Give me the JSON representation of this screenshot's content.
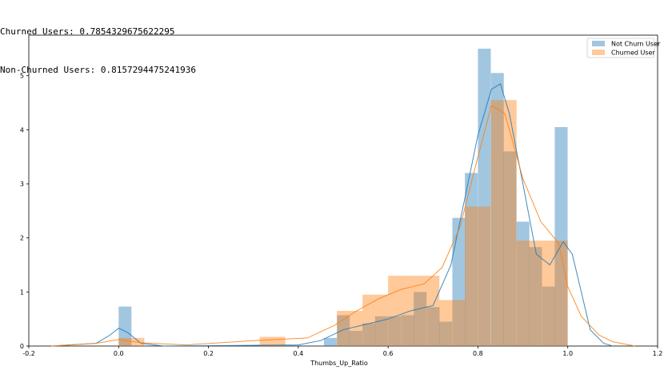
{
  "output": {
    "lines": [
      "Churned Users: 0.7854329675622295",
      "Non-Churned Users: 0.8157294475241936"
    ]
  },
  "colors": {
    "not_churn": "#1f77b4",
    "churned": "#ff7f0e"
  },
  "chart_data": {
    "type": "bar",
    "xlabel": "Thumbs_Up_Ratio",
    "ylabel": "",
    "title": "",
    "xlim": [
      -0.2,
      1.2
    ],
    "ylim": [
      0,
      5.75
    ],
    "xticks": [
      "-0.2",
      "0.0",
      "0.2",
      "0.4",
      "0.6",
      "0.8",
      "1.0",
      "1.2"
    ],
    "yticks": [
      "0",
      "1",
      "2",
      "3",
      "4",
      "5"
    ],
    "legend": {
      "position": "top-right"
    },
    "series": [
      {
        "name": "Not Churn User",
        "kind": "histogram_kde",
        "bin_width": 0.0286,
        "bins": [
          [
            0.0,
            0.73
          ],
          [
            0.457,
            0.15
          ],
          [
            0.486,
            0.57
          ],
          [
            0.514,
            0.28
          ],
          [
            0.543,
            0.42
          ],
          [
            0.571,
            0.55
          ],
          [
            0.6,
            0.55
          ],
          [
            0.629,
            0.57
          ],
          [
            0.657,
            1.0
          ],
          [
            0.686,
            0.72
          ],
          [
            0.714,
            0.45
          ],
          [
            0.743,
            2.37
          ],
          [
            0.771,
            3.2
          ],
          [
            0.8,
            5.5
          ],
          [
            0.829,
            5.05
          ],
          [
            0.857,
            3.6
          ],
          [
            0.886,
            2.3
          ],
          [
            0.914,
            1.83
          ],
          [
            0.943,
            1.1
          ],
          [
            0.971,
            4.05
          ]
        ],
        "kde": [
          [
            -0.15,
            0.0
          ],
          [
            -0.05,
            0.05
          ],
          [
            -0.02,
            0.2
          ],
          [
            0.0,
            0.33
          ],
          [
            0.02,
            0.25
          ],
          [
            0.05,
            0.05
          ],
          [
            0.1,
            0.0
          ],
          [
            0.4,
            0.02
          ],
          [
            0.45,
            0.1
          ],
          [
            0.5,
            0.3
          ],
          [
            0.55,
            0.4
          ],
          [
            0.6,
            0.5
          ],
          [
            0.65,
            0.65
          ],
          [
            0.7,
            0.75
          ],
          [
            0.74,
            1.5
          ],
          [
            0.77,
            2.7
          ],
          [
            0.8,
            3.9
          ],
          [
            0.83,
            4.75
          ],
          [
            0.85,
            4.85
          ],
          [
            0.87,
            4.3
          ],
          [
            0.9,
            3.0
          ],
          [
            0.93,
            1.7
          ],
          [
            0.96,
            1.5
          ],
          [
            0.99,
            1.93
          ],
          [
            1.01,
            1.7
          ],
          [
            1.03,
            1.0
          ],
          [
            1.05,
            0.3
          ],
          [
            1.08,
            0.05
          ],
          [
            1.1,
            0.0
          ]
        ]
      },
      {
        "name": "Churned User",
        "kind": "histogram_kde",
        "bin_width": 0.0571,
        "bins": [
          [
            0.0,
            0.15
          ],
          [
            0.314,
            0.17
          ],
          [
            0.486,
            0.65
          ],
          [
            0.543,
            0.95
          ],
          [
            0.6,
            1.3
          ],
          [
            0.657,
            1.3
          ],
          [
            0.714,
            0.85
          ],
          [
            0.771,
            2.58
          ],
          [
            0.829,
            4.55
          ],
          [
            0.886,
            1.95
          ],
          [
            0.943,
            1.95
          ]
        ],
        "kde": [
          [
            -0.15,
            0.0
          ],
          [
            -0.05,
            0.05
          ],
          [
            0.0,
            0.12
          ],
          [
            0.05,
            0.06
          ],
          [
            0.15,
            0.02
          ],
          [
            0.3,
            0.1
          ],
          [
            0.35,
            0.12
          ],
          [
            0.42,
            0.15
          ],
          [
            0.48,
            0.38
          ],
          [
            0.53,
            0.65
          ],
          [
            0.58,
            0.88
          ],
          [
            0.63,
            1.05
          ],
          [
            0.68,
            1.15
          ],
          [
            0.72,
            1.45
          ],
          [
            0.76,
            2.2
          ],
          [
            0.8,
            3.5
          ],
          [
            0.83,
            4.45
          ],
          [
            0.86,
            4.3
          ],
          [
            0.9,
            3.1
          ],
          [
            0.94,
            2.3
          ],
          [
            0.98,
            1.9
          ],
          [
            1.0,
            1.1
          ],
          [
            1.03,
            0.55
          ],
          [
            1.07,
            0.2
          ],
          [
            1.1,
            0.08
          ],
          [
            1.15,
            0.0
          ]
        ]
      }
    ]
  }
}
